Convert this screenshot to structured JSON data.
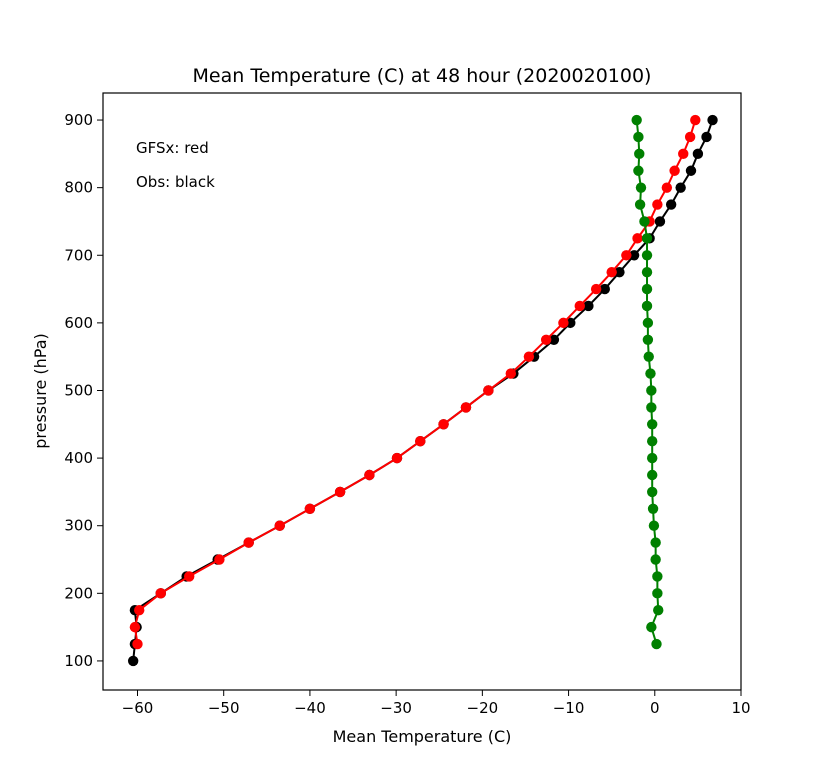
{
  "chart_data": {
    "type": "line",
    "title": "Mean Temperature (C) at 48 hour (2020020100)",
    "xlabel": "Mean Temperature (C)",
    "ylabel": "pressure (hPa)",
    "xlim": [
      -64,
      10
    ],
    "ylim": [
      57,
      940
    ],
    "xticks": [
      -60,
      -50,
      -40,
      -30,
      -20,
      -10,
      0,
      10
    ],
    "xtick_labels": [
      "−60",
      "−50",
      "−40",
      "−30",
      "−20",
      "−10",
      "0",
      "10"
    ],
    "yticks": [
      100,
      200,
      300,
      400,
      500,
      600,
      700,
      800,
      900
    ],
    "ytick_labels": [
      "100",
      "200",
      "300",
      "400",
      "500",
      "600",
      "700",
      "800",
      "900"
    ],
    "grid": false,
    "annotations": [
      "GFSx: red",
      "Obs: black"
    ],
    "series": [
      {
        "color": "#000000",
        "points": [
          [
            -60.5,
            100
          ],
          [
            -60.3,
            125
          ],
          [
            -60.1,
            150
          ],
          [
            -60.3,
            175
          ],
          [
            -57.3,
            200
          ],
          [
            -54.3,
            225
          ],
          [
            -50.7,
            250
          ],
          [
            -47.1,
            275
          ],
          [
            -43.5,
            300
          ],
          [
            -40.0,
            325
          ],
          [
            -36.5,
            350
          ],
          [
            -33.1,
            375
          ],
          [
            -29.9,
            400
          ],
          [
            -27.2,
            425
          ],
          [
            -24.5,
            450
          ],
          [
            -21.9,
            475
          ],
          [
            -19.3,
            500
          ],
          [
            -16.4,
            525
          ],
          [
            -14.0,
            550
          ],
          [
            -11.7,
            575
          ],
          [
            -9.8,
            600
          ],
          [
            -7.7,
            625
          ],
          [
            -5.8,
            650
          ],
          [
            -4.1,
            675
          ],
          [
            -2.4,
            700
          ],
          [
            -0.6,
            725
          ],
          [
            0.6,
            750
          ],
          [
            1.9,
            775
          ],
          [
            3.0,
            800
          ],
          [
            4.2,
            825
          ],
          [
            5.0,
            850
          ],
          [
            6.0,
            875
          ],
          [
            6.7,
            900
          ]
        ]
      },
      {
        "color": "#ff0000",
        "points": [
          [
            -60.0,
            125
          ],
          [
            -60.3,
            150
          ],
          [
            -59.8,
            175
          ],
          [
            -57.3,
            200
          ],
          [
            -54.0,
            225
          ],
          [
            -50.5,
            250
          ],
          [
            -47.1,
            275
          ],
          [
            -43.5,
            300
          ],
          [
            -40.0,
            325
          ],
          [
            -36.5,
            350
          ],
          [
            -33.1,
            375
          ],
          [
            -29.9,
            400
          ],
          [
            -27.2,
            425
          ],
          [
            -24.5,
            450
          ],
          [
            -21.9,
            475
          ],
          [
            -19.3,
            500
          ],
          [
            -16.7,
            525
          ],
          [
            -14.6,
            550
          ],
          [
            -12.6,
            575
          ],
          [
            -10.6,
            600
          ],
          [
            -8.7,
            625
          ],
          [
            -6.8,
            650
          ],
          [
            -5.0,
            675
          ],
          [
            -3.3,
            700
          ],
          [
            -2.0,
            725
          ],
          [
            -0.6,
            750
          ],
          [
            0.3,
            775
          ],
          [
            1.4,
            800
          ],
          [
            2.3,
            825
          ],
          [
            3.3,
            850
          ],
          [
            4.1,
            875
          ],
          [
            4.7,
            900
          ]
        ]
      },
      {
        "color": "#008000",
        "points": [
          [
            0.2,
            125
          ],
          [
            -0.4,
            150
          ],
          [
            0.4,
            175
          ],
          [
            0.3,
            200
          ],
          [
            0.3,
            225
          ],
          [
            0.1,
            250
          ],
          [
            0.1,
            275
          ],
          [
            -0.1,
            300
          ],
          [
            -0.2,
            325
          ],
          [
            -0.3,
            350
          ],
          [
            -0.3,
            375
          ],
          [
            -0.3,
            400
          ],
          [
            -0.3,
            425
          ],
          [
            -0.3,
            450
          ],
          [
            -0.4,
            475
          ],
          [
            -0.4,
            500
          ],
          [
            -0.5,
            525
          ],
          [
            -0.7,
            550
          ],
          [
            -0.8,
            575
          ],
          [
            -0.8,
            600
          ],
          [
            -0.9,
            625
          ],
          [
            -0.9,
            650
          ],
          [
            -0.9,
            675
          ],
          [
            -0.9,
            700
          ],
          [
            -0.9,
            725
          ],
          [
            -1.2,
            750
          ],
          [
            -1.7,
            775
          ],
          [
            -1.6,
            800
          ],
          [
            -1.9,
            825
          ],
          [
            -1.8,
            850
          ],
          [
            -1.9,
            875
          ],
          [
            -2.1,
            900
          ]
        ]
      }
    ]
  }
}
